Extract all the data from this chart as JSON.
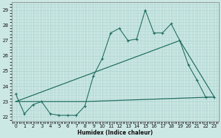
{
  "xlabel": "Humidex (Indice chaleur)",
  "ylabel": "",
  "bg_color": "#cce8e5",
  "line_color": "#1e6b5e",
  "grid_color": "#b0d5d0",
  "xlim": [
    -0.5,
    23.5
  ],
  "ylim": [
    21.7,
    29.5
  ],
  "yticks": [
    22,
    23,
    24,
    25,
    26,
    27,
    28,
    29
  ],
  "xticks": [
    0,
    1,
    2,
    3,
    4,
    5,
    6,
    7,
    8,
    9,
    10,
    11,
    12,
    13,
    14,
    15,
    16,
    17,
    18,
    19,
    20,
    21,
    22,
    23
  ],
  "series1_x": [
    0,
    1,
    2,
    3,
    4,
    5,
    6,
    7,
    8,
    9,
    10,
    11,
    12,
    13,
    14,
    15,
    16,
    17,
    18,
    19,
    20,
    21,
    22,
    23
  ],
  "series1_y": [
    23.5,
    22.2,
    22.8,
    23.0,
    22.2,
    22.1,
    22.1,
    22.1,
    22.7,
    24.7,
    25.8,
    27.5,
    27.8,
    27.0,
    27.1,
    29.0,
    27.5,
    27.5,
    28.1,
    27.0,
    25.4,
    24.4,
    23.3,
    23.3
  ],
  "series2_x": [
    0,
    19,
    23
  ],
  "series2_y": [
    23.0,
    27.0,
    23.3
  ],
  "series3_x": [
    0,
    8,
    23
  ],
  "series3_y": [
    23.0,
    23.0,
    23.3
  ],
  "figwidth": 3.2,
  "figheight": 2.0,
  "dpi": 100
}
